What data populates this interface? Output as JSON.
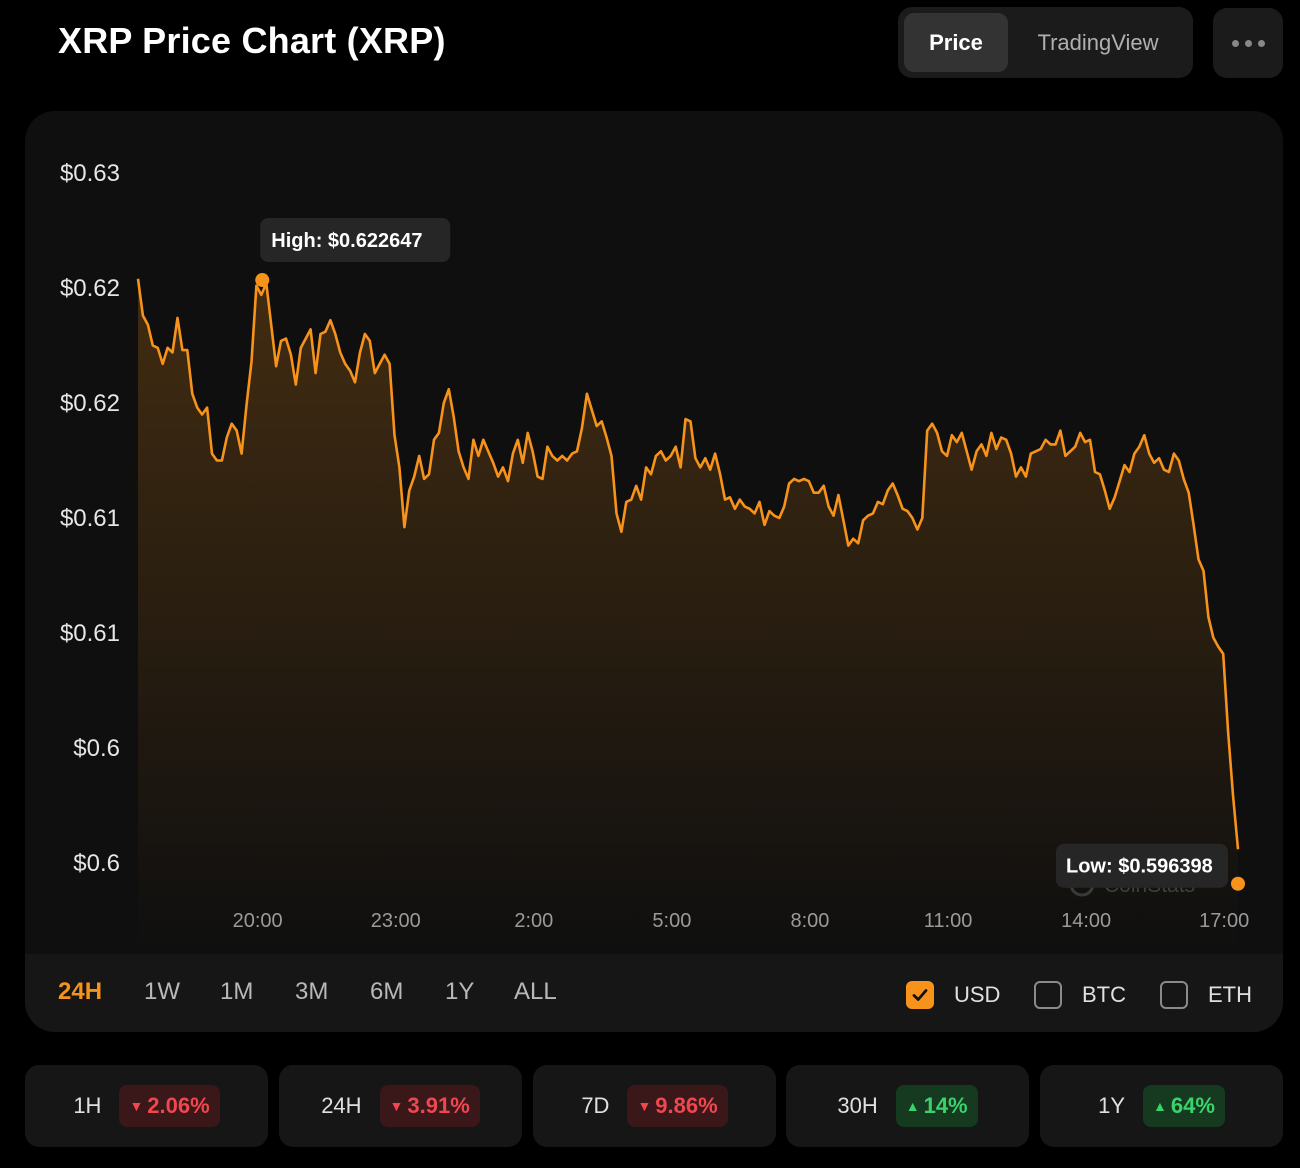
{
  "header": {
    "title": "XRP Price Chart (XRP)",
    "toggle": {
      "price_label": "Price",
      "tradingview_label": "TradingView"
    },
    "more_icon": "more-dots-icon"
  },
  "chart_data": {
    "type": "area",
    "title": "",
    "y_tick_labels": [
      "$0.63",
      "$0.62",
      "$0.62",
      "$0.61",
      "$0.61",
      "$0.6",
      "$0.6"
    ],
    "x_tick_labels": [
      "20:00",
      "23:00",
      "2:00",
      "5:00",
      "8:00",
      "11:00",
      "14:00",
      "17:00"
    ],
    "x_tick_hours": [
      20,
      23,
      26,
      29,
      32,
      35,
      38,
      41
    ],
    "x_range_hours": [
      17.4,
      41.3
    ],
    "ylim": [
      0.5973,
      0.6273
    ],
    "series_color": "#f7931a",
    "high": {
      "label": "High: $0.622647",
      "value": 0.622647,
      "hour": 20.1
    },
    "low": {
      "label": "Low: $0.596398",
      "value": 0.596398,
      "hour": 41.3
    },
    "watermark": "CoinStats",
    "values": [
      0.6227,
      0.6211,
      0.6207,
      0.6198,
      0.6197,
      0.619,
      0.6197,
      0.6195,
      0.621,
      0.6196,
      0.6196,
      0.6177,
      0.6171,
      0.6168,
      0.6171,
      0.6151,
      0.6148,
      0.6148,
      0.6158,
      0.6164,
      0.6161,
      0.6151,
      0.6172,
      0.6191,
      0.6224,
      0.622,
      0.6225,
      0.6207,
      0.6189,
      0.62,
      0.6201,
      0.6194,
      0.6181,
      0.6197,
      0.6201,
      0.6205,
      0.6186,
      0.6203,
      0.6204,
      0.6209,
      0.6203,
      0.6195,
      0.619,
      0.6187,
      0.6182,
      0.6195,
      0.6203,
      0.62,
      0.6186,
      0.619,
      0.6194,
      0.619,
      0.6159,
      0.6145,
      0.6119,
      0.6135,
      0.6141,
      0.615,
      0.614,
      0.6142,
      0.6157,
      0.616,
      0.6173,
      0.6179,
      0.6167,
      0.6152,
      0.6145,
      0.614,
      0.6157,
      0.615,
      0.6157,
      0.6152,
      0.6147,
      0.6141,
      0.6145,
      0.6139,
      0.6151,
      0.6157,
      0.6147,
      0.616,
      0.6152,
      0.6141,
      0.614,
      0.6154,
      0.615,
      0.6148,
      0.615,
      0.6148,
      0.6151,
      0.6152,
      0.6162,
      0.6177,
      0.617,
      0.6163,
      0.6165,
      0.6158,
      0.615,
      0.6125,
      0.6117,
      0.613,
      0.6131,
      0.6137,
      0.6131,
      0.6145,
      0.6142,
      0.615,
      0.6152,
      0.6148,
      0.615,
      0.6154,
      0.6145,
      0.6166,
      0.6165,
      0.6149,
      0.6145,
      0.6149,
      0.6144,
      0.6151,
      0.6142,
      0.6131,
      0.6132,
      0.6127,
      0.6131,
      0.6128,
      0.6127,
      0.6125,
      0.613,
      0.612,
      0.6126,
      0.6124,
      0.6123,
      0.6128,
      0.6138,
      0.614,
      0.6139,
      0.614,
      0.6139,
      0.6134,
      0.6134,
      0.6137,
      0.6128,
      0.6124,
      0.6133,
      0.6122,
      0.6111,
      0.6114,
      0.6112,
      0.6122,
      0.6124,
      0.6125,
      0.613,
      0.6129,
      0.6135,
      0.6138,
      0.6133,
      0.6127,
      0.6126,
      0.6123,
      0.6118,
      0.6123,
      0.6161,
      0.6164,
      0.616,
      0.6152,
      0.615,
      0.6159,
      0.6156,
      0.616,
      0.6152,
      0.6144,
      0.6152,
      0.6155,
      0.615,
      0.616,
      0.6153,
      0.6158,
      0.6157,
      0.6151,
      0.6141,
      0.6145,
      0.6141,
      0.6151,
      0.6152,
      0.6153,
      0.6157,
      0.6155,
      0.6155,
      0.6161,
      0.615,
      0.6152,
      0.6154,
      0.616,
      0.6156,
      0.6157,
      0.6143,
      0.6142,
      0.6135,
      0.6127,
      0.6132,
      0.6139,
      0.6146,
      0.6143,
      0.6151,
      0.6154,
      0.6159,
      0.6151,
      0.6147,
      0.6149,
      0.6144,
      0.6143,
      0.6151,
      0.6148,
      0.614,
      0.6134,
      0.612,
      0.6105,
      0.61,
      0.608,
      0.6071,
      0.6067,
      0.6064,
      0.603,
      0.6002,
      0.5979
    ]
  },
  "range_tabs": {
    "items": [
      {
        "label": "24H",
        "active": true
      },
      {
        "label": "1W",
        "active": false
      },
      {
        "label": "1M",
        "active": false
      },
      {
        "label": "3M",
        "active": false
      },
      {
        "label": "6M",
        "active": false
      },
      {
        "label": "1Y",
        "active": false
      },
      {
        "label": "ALL",
        "active": false
      }
    ]
  },
  "currencies": {
    "items": [
      {
        "label": "USD",
        "checked": true
      },
      {
        "label": "BTC",
        "checked": false
      },
      {
        "label": "ETH",
        "checked": false
      }
    ]
  },
  "stats": {
    "items": [
      {
        "label": "1H",
        "change": "2.06%",
        "direction": "down"
      },
      {
        "label": "24H",
        "change": "3.91%",
        "direction": "down"
      },
      {
        "label": "7D",
        "change": "9.86%",
        "direction": "down"
      },
      {
        "label": "30H",
        "change": "14%",
        "direction": "up"
      },
      {
        "label": "1Y",
        "change": "64%",
        "direction": "up"
      }
    ]
  }
}
